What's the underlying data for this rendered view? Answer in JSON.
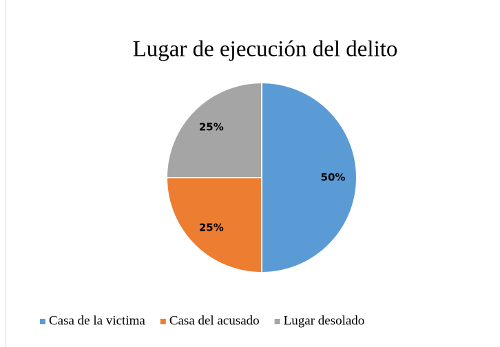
{
  "chart_data": {
    "type": "pie",
    "title": "Lugar de ejecución del delito",
    "categories": [
      "Casa de la victima",
      "Casa del acusado",
      "Lugar desolado"
    ],
    "values": [
      50,
      25,
      25
    ],
    "value_labels": [
      "50%",
      "25%",
      "25%"
    ],
    "colors": [
      "#5b9bd5",
      "#ed7d31",
      "#a5a5a5"
    ],
    "legend": "bottom"
  }
}
